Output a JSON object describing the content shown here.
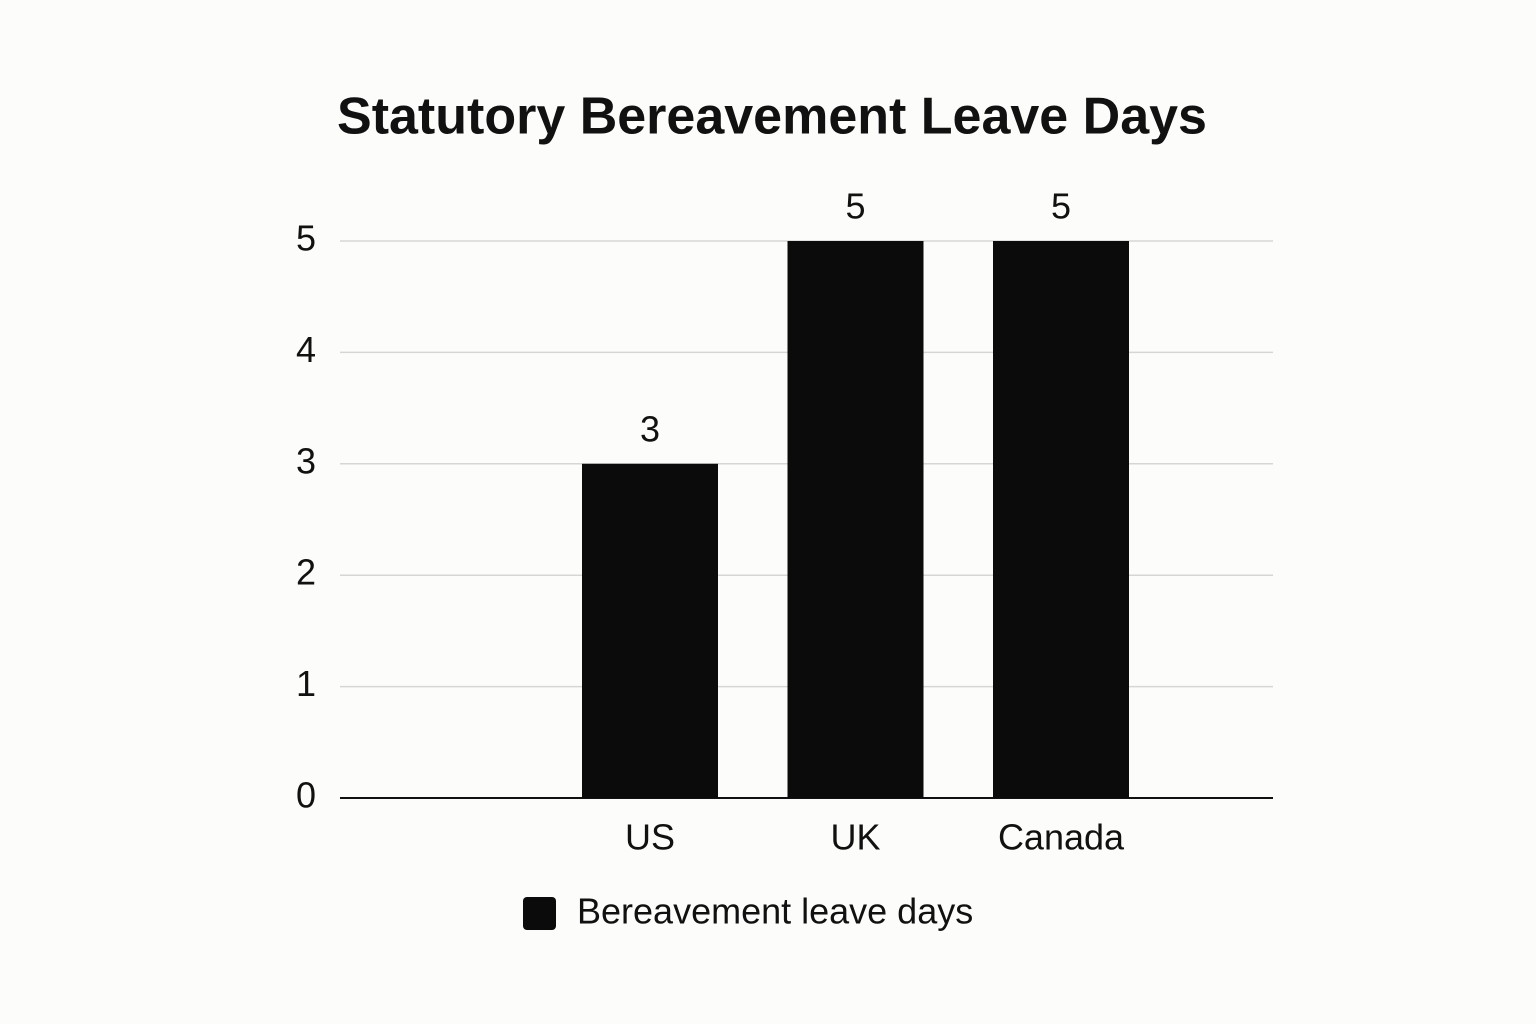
{
  "chart_data": {
    "type": "bar",
    "title": "Statutory Bereavement Leave Days",
    "categories": [
      "US",
      "UK",
      "Canada"
    ],
    "series": [
      {
        "name": "Bereavement leave days",
        "color": "#0b0b0c",
        "values": [
          3,
          5,
          5
        ]
      }
    ],
    "ylim": [
      0,
      5
    ],
    "yticks": [
      0,
      1,
      2,
      3,
      4,
      5
    ],
    "grid": true,
    "legend": "bottom"
  }
}
